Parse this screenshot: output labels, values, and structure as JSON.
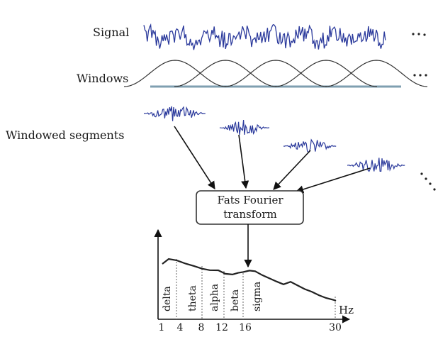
{
  "labels": {
    "signal": "Signal",
    "windows": "Windows",
    "segments": "Windowed segments"
  },
  "box": {
    "line1": "Fats Fourier",
    "line2": "transform"
  },
  "spectrum": {
    "unit": "Hz",
    "bands": [
      "delta",
      "theta",
      "alpha",
      "beta",
      "sigma"
    ],
    "ticks": [
      "1",
      "4",
      "8",
      "12",
      "16",
      "30"
    ]
  },
  "colors": {
    "signal": "#2b3a9c",
    "window": "#333333",
    "baseline": "#7f9fb0",
    "arrow": "#111111"
  }
}
